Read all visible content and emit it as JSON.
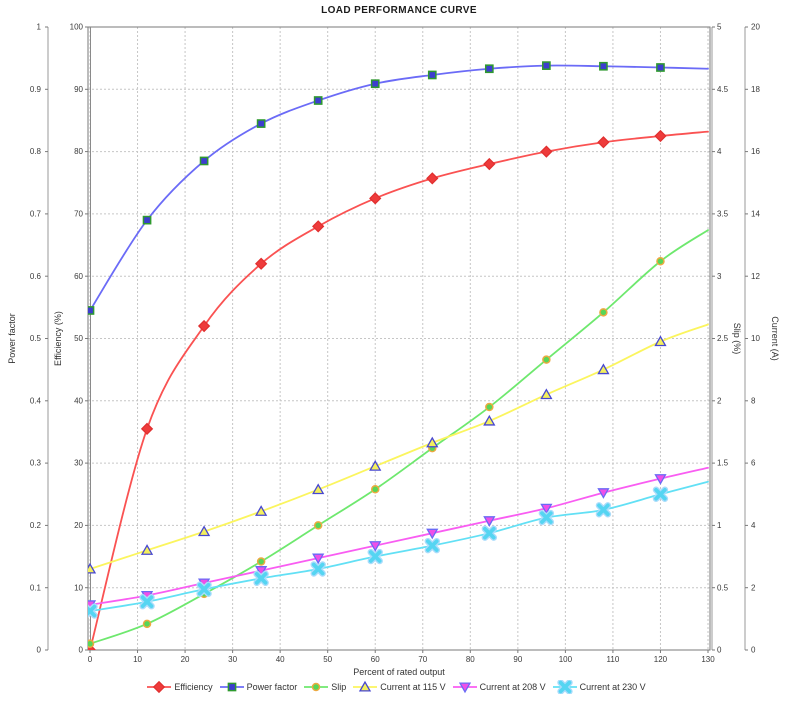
{
  "chart_data": {
    "type": "line",
    "title": "LOAD PERFORMANCE CURVE",
    "xlabel": "Percent of rated output",
    "x": [
      0,
      12,
      24,
      36,
      48,
      60,
      72,
      84,
      96,
      108,
      120
    ],
    "x_axis": {
      "min": 0,
      "max": 130,
      "tick_step": 10
    },
    "grid": true,
    "legend_position": "bottom",
    "axes": {
      "power_factor": {
        "title": "Power factor",
        "min": 0,
        "max": 1,
        "tick_step": 0.1
      },
      "efficiency": {
        "title": "Efficiency (%)",
        "min": 0,
        "max": 100,
        "tick_step": 10
      },
      "slip": {
        "title": "Slip (%)",
        "min": 0,
        "max": 5,
        "tick_step": 0.5
      },
      "current": {
        "title": "Current (A)",
        "min": 0,
        "max": 20,
        "tick_step": 2
      }
    },
    "series": [
      {
        "name": "Efficiency",
        "axis": "efficiency",
        "marker": "diamond",
        "color": "#ee3b3b",
        "line_color": "#fa5252",
        "marker_stroke": "#e02f2f",
        "values": [
          0,
          35.5,
          52,
          62,
          68,
          72.5,
          75.7,
          78,
          80,
          81.5,
          82.5
        ],
        "line_end_value": 83.2
      },
      {
        "name": "Power factor",
        "axis": "power_factor",
        "marker": "square",
        "color": "#3d3dcf",
        "line_color": "#6b6bf7",
        "marker_stroke": "#2f9a2f",
        "values": [
          0.545,
          0.69,
          0.785,
          0.845,
          0.882,
          0.909,
          0.923,
          0.933,
          0.938,
          0.937,
          0.935
        ],
        "line_end_value": 0.933
      },
      {
        "name": "Slip",
        "axis": "slip",
        "marker": "circle",
        "color": "#57d657",
        "line_color": "#6ee86e",
        "marker_stroke": "#eca940",
        "values": [
          0.05,
          0.21,
          0.45,
          0.71,
          1.0,
          1.29,
          1.62,
          1.95,
          2.33,
          2.71,
          3.12
        ],
        "line_end_value": 3.37
      },
      {
        "name": "Current at 115 V",
        "axis": "current",
        "marker": "triangle-up",
        "color": "#f3ef5d",
        "line_color": "#fbf55e",
        "marker_stroke": "#4747d1",
        "values": [
          2.6,
          3.2,
          3.8,
          4.45,
          5.15,
          5.9,
          6.65,
          7.35,
          8.2,
          9.0,
          9.9
        ],
        "line_end_value": 10.45
      },
      {
        "name": "Current at 208 V",
        "axis": "current",
        "marker": "triangle-down",
        "color": "#ef4fe8",
        "line_color": "#f95df2",
        "marker_stroke": "#6a6af5",
        "values": [
          1.45,
          1.75,
          2.15,
          2.55,
          2.95,
          3.35,
          3.75,
          4.15,
          4.55,
          5.05,
          5.5
        ],
        "line_end_value": 5.85
      },
      {
        "name": "Current at 230 V",
        "axis": "current",
        "marker": "x-cross",
        "color": "#55d5f2",
        "line_color": "#62e0f5",
        "marker_stroke": "#aadcfb",
        "values": [
          1.25,
          1.55,
          1.95,
          2.3,
          2.6,
          3.0,
          3.35,
          3.75,
          4.25,
          4.5,
          5.0
        ],
        "line_end_value": 5.4
      }
    ],
    "legend": [
      "Efficiency",
      "Power factor",
      "Slip",
      "Current at 115 V",
      "Current at 208 V",
      "Current at 230 V"
    ]
  }
}
